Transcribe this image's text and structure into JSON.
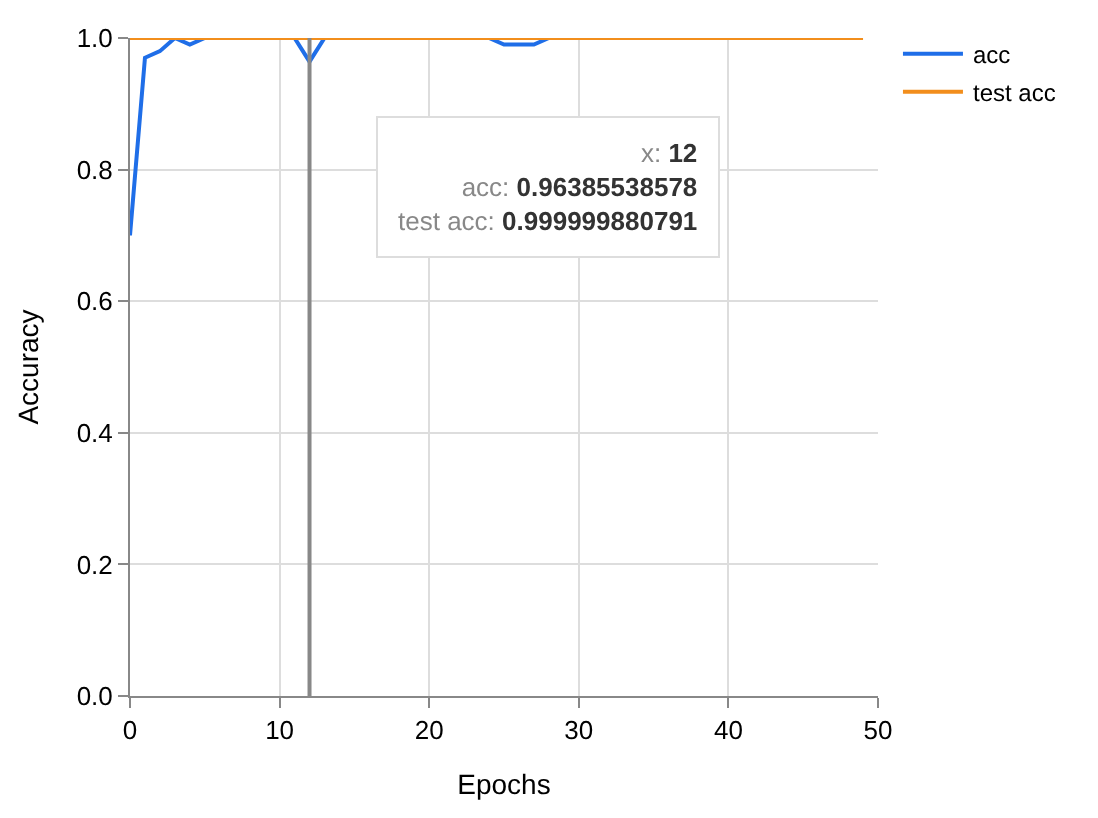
{
  "chart_data": {
    "type": "line",
    "xlabel": "Epochs",
    "ylabel": "Accuracy",
    "x": [
      0,
      1,
      2,
      3,
      4,
      5,
      6,
      7,
      8,
      9,
      10,
      11,
      12,
      13,
      14,
      15,
      16,
      17,
      18,
      19,
      20,
      21,
      22,
      23,
      24,
      25,
      26,
      27,
      28,
      29,
      30,
      31,
      32,
      33,
      34,
      35,
      36,
      37,
      38,
      39,
      40,
      41,
      42,
      43,
      44,
      45,
      46,
      47,
      48,
      49
    ],
    "series": [
      {
        "name": "acc",
        "color": "#1f6ee8",
        "values": [
          0.7,
          0.97,
          0.98,
          1.0,
          0.99,
          1.0,
          null,
          null,
          null,
          null,
          null,
          1.0,
          0.964,
          1.0,
          null,
          null,
          null,
          null,
          null,
          null,
          null,
          null,
          null,
          null,
          1.0,
          0.99,
          0.99,
          0.99,
          1.0,
          null,
          null,
          null,
          null,
          null,
          null,
          null,
          null,
          null,
          null,
          null,
          null,
          null,
          null,
          null,
          null,
          null,
          null,
          null,
          null,
          null
        ]
      },
      {
        "name": "test acc",
        "color": "#f28e1c",
        "values": [
          1.0,
          1.0,
          1.0,
          1.0,
          1.0,
          1.0,
          1.0,
          1.0,
          1.0,
          1.0,
          1.0,
          1.0,
          1.0,
          1.0,
          1.0,
          1.0,
          1.0,
          1.0,
          1.0,
          1.0,
          1.0,
          1.0,
          1.0,
          1.0,
          1.0,
          1.0,
          1.0,
          1.0,
          1.0,
          1.0,
          1.0,
          1.0,
          1.0,
          1.0,
          1.0,
          1.0,
          1.0,
          1.0,
          1.0,
          1.0,
          1.0,
          1.0,
          1.0,
          1.0,
          1.0,
          1.0,
          1.0,
          1.0,
          1.0,
          1.0
        ]
      }
    ],
    "xlim": [
      0,
      50
    ],
    "xticks": [
      0,
      10,
      20,
      30,
      40,
      50
    ],
    "ylim": [
      0,
      1
    ],
    "yticks": [
      {
        "value": 0,
        "label": "0.0"
      },
      {
        "value": 0.2,
        "label": "0.2"
      },
      {
        "value": 0.4,
        "label": "0.4"
      },
      {
        "value": 0.6,
        "label": "0.6"
      },
      {
        "value": 0.8,
        "label": "0.8"
      },
      {
        "value": 1,
        "label": "1.0"
      }
    ],
    "ref_lines": [
      {
        "axis": "x",
        "value": 12,
        "color": "#888888"
      }
    ],
    "annotations": [
      "x: 12",
      "acc: 0.96385538578",
      "test acc: 0.999999880791"
    ],
    "grid": true,
    "legend": "top right",
    "marker": "none",
    "line_style": "solid"
  }
}
